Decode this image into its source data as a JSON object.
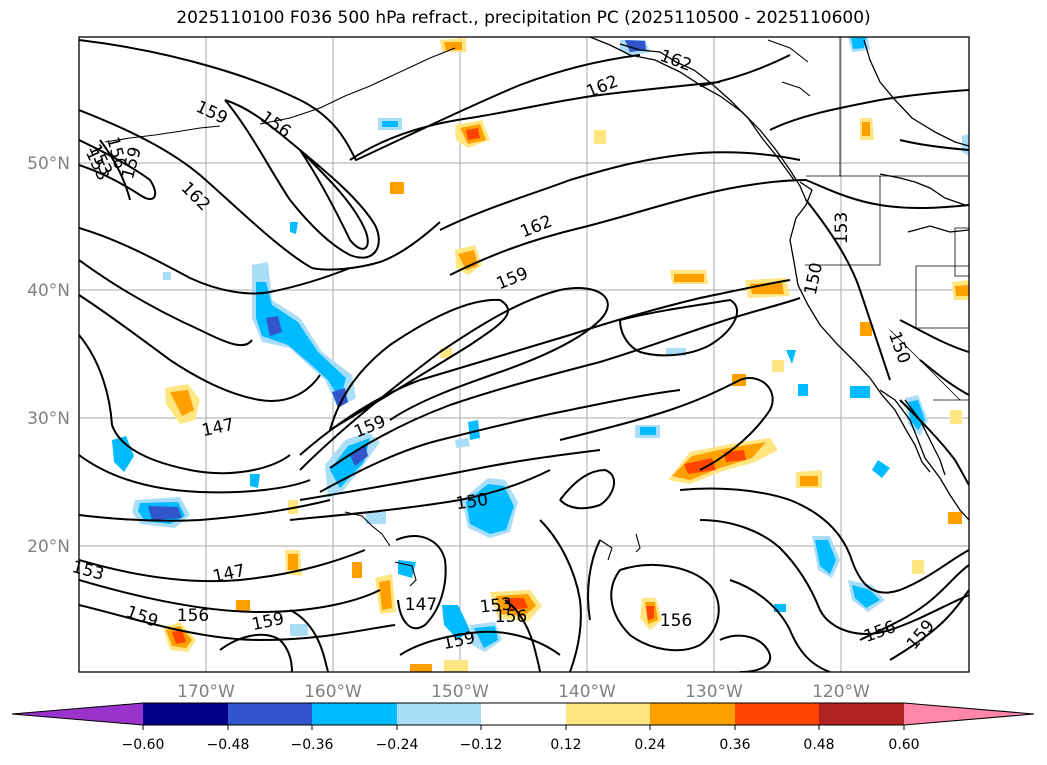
{
  "title": "2025110100 F036 500 hPa refract., precipitation PC (2025110500 - 2025110600)",
  "lat_labels": [
    "50°N",
    "40°N",
    "30°N",
    "20°N"
  ],
  "lon_labels": [
    "170°W",
    "160°W",
    "150°W",
    "140°W",
    "130°W",
    "120°W"
  ],
  "contour_labels": [
    "159",
    "156",
    "153",
    "156",
    "159",
    "162",
    "162",
    "162",
    "159",
    "162",
    "153",
    "150",
    "150",
    "159",
    "147",
    "150",
    "147",
    "153",
    "159",
    "156",
    "159",
    "147",
    "153",
    "156",
    "159",
    "156",
    "156",
    "159",
    "153"
  ],
  "colorbar": {
    "ticks": [
      "−0.60",
      "−0.48",
      "−0.36",
      "−0.24",
      "−0.12",
      "0.12",
      "0.24",
      "0.36",
      "0.48",
      "0.60"
    ],
    "colors": [
      "#9933cc",
      "#000088",
      "#3355cc",
      "#00bbff",
      "#aaddf8",
      "#ffffff",
      "#ffe680",
      "#ff9f00",
      "#ff4400",
      "#b22222",
      "#ff88aa"
    ]
  }
}
